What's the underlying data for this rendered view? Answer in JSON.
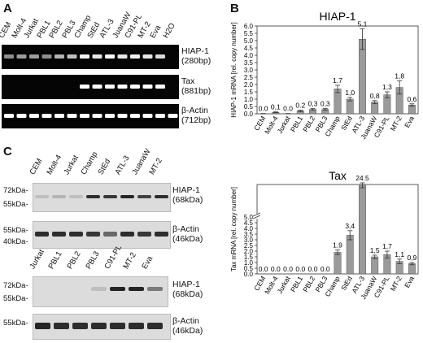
{
  "panel_a": {
    "letter": "A",
    "lanes": [
      "CEM",
      "Molt-4",
      "Jurkat",
      "PBL1",
      "PBL2",
      "PBL3",
      "Champ",
      "StEd",
      "ATL-3",
      "JuanaW",
      "C91-PL",
      "MT-2",
      "Eva",
      "H2O"
    ],
    "gels": [
      {
        "name": "HIAP-1",
        "size": "(280bp)"
      },
      {
        "name": "Tax",
        "size": "(881bp)"
      },
      {
        "name": "β-Actin",
        "size": "(712bp)"
      }
    ]
  },
  "panel_b": {
    "letter": "B"
  },
  "panel_c": {
    "letter": "C",
    "top": {
      "lanes": [
        "CEM",
        "Molt-4",
        "Jurkat",
        "Champ",
        "StEd",
        "ATL-3",
        "JuanaW",
        "MT-2"
      ],
      "blot1": {
        "name": "HIAP-1",
        "size": "(68kDa)",
        "mw": [
          "72kDa-",
          "55kDa-"
        ]
      },
      "blot2": {
        "name": "β-Actin",
        "size": "(46kDa)",
        "mw": [
          "55kDa-",
          "40kDa-"
        ]
      }
    },
    "bottom": {
      "lanes": [
        "Jurkat",
        "PBL1",
        "PBL2",
        "PBL3",
        "C91-PL",
        "MT-2",
        "Eva"
      ],
      "blot1": {
        "name": "HIAP-1",
        "size": "(68kDa)",
        "mw": [
          "72kDa-",
          "55kDa-"
        ]
      },
      "blot2": {
        "name": "β-Actin",
        "size": "(46kDa)",
        "mw": [
          "55kDa-"
        ]
      }
    }
  },
  "chart_data": [
    {
      "type": "bar",
      "title": "HIAP-1",
      "ylabel": "HIAP-1 mRNA [rel. copy number]",
      "categories": [
        "CEM",
        "Molt-4",
        "Jurkat",
        "PBL1",
        "PBL2",
        "PBL3",
        "Champ",
        "StEd",
        "ATL-3",
        "JuanaW",
        "C91-PL",
        "MT-2",
        "Eva"
      ],
      "values": [
        0.0,
        0.1,
        0.0,
        0.2,
        0.3,
        0.3,
        1.7,
        1.0,
        5.1,
        0.8,
        1.3,
        1.8,
        0.6
      ],
      "value_labels": [
        "0.0",
        "0,1",
        "0.0",
        "0.2",
        "0,3",
        "0,3",
        "1.7",
        "1,0",
        "5.1",
        "0,8",
        "1,3",
        "1,8",
        "0,6"
      ],
      "errors": [
        0.02,
        0.03,
        0.02,
        0.05,
        0.06,
        0.06,
        0.25,
        0.12,
        0.7,
        0.1,
        0.2,
        0.45,
        0.08
      ],
      "ylim": [
        0,
        6
      ],
      "yticks": [
        "0.0",
        "0.5",
        "1.0",
        "1.5",
        "2.0",
        "2.5",
        "3.0",
        "3.5",
        "4.0",
        "4.5",
        "5.0",
        "5.5",
        "6.0"
      ],
      "color": "#9a9a9a"
    },
    {
      "type": "bar",
      "title": "Tax",
      "ylabel": "Tax mRNA [rel. copy number]",
      "categories": [
        "CEM",
        "Molt-4",
        "Jurkat",
        "PBL1",
        "PBL2",
        "PBL3",
        "Champ",
        "StEd",
        "ATL-3",
        "JuanaW",
        "C91-PL",
        "MT-2",
        "Eva"
      ],
      "values": [
        0.0,
        0.0,
        0.0,
        0.0,
        0.0,
        0.0,
        1.9,
        3.4,
        24.5,
        1.5,
        1.7,
        1.1,
        0.9
      ],
      "value_labels": [
        "0.0",
        "0.0",
        "0.0",
        "0.0",
        "0.0",
        "0.0",
        "1,9",
        "3,4",
        "24.5",
        "1,5",
        "1,7",
        "1,1",
        "0,9"
      ],
      "errors": [
        0,
        0,
        0,
        0,
        0,
        0,
        0.2,
        0.4,
        1.5,
        0.15,
        0.3,
        0.2,
        0.1
      ],
      "ylim": [
        0,
        25
      ],
      "axis_break": true,
      "yticks": [
        "0.0",
        "0.5",
        "1.0",
        "1.5",
        "2.0",
        "2.5",
        "3.0",
        "3.5",
        "4.0",
        "4.5",
        "5.0"
      ],
      "color": "#9a9a9a"
    }
  ]
}
